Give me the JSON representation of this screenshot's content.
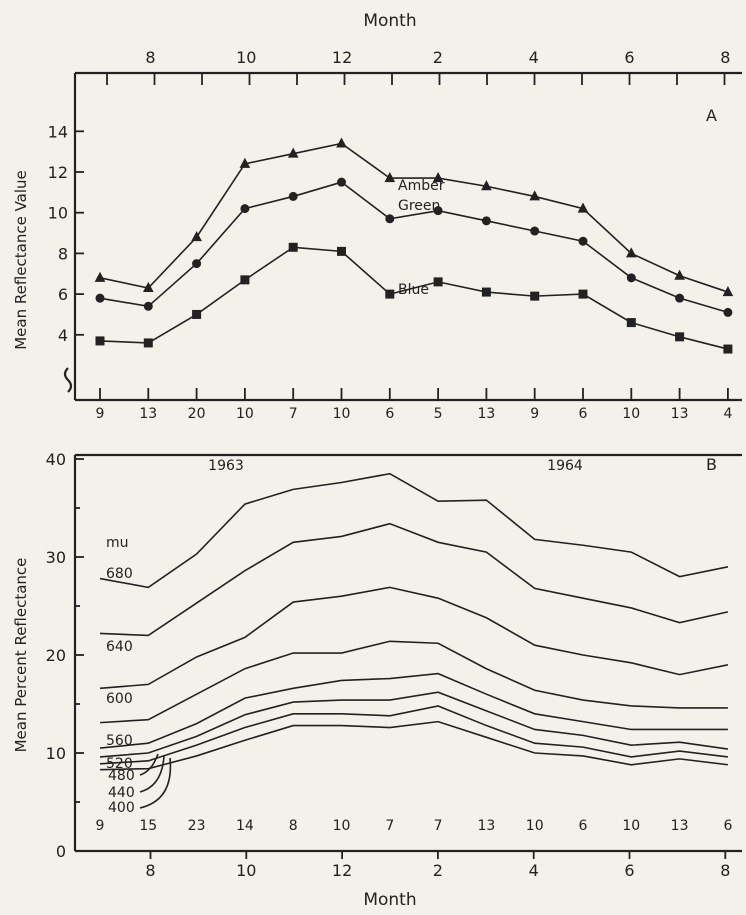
{
  "chart_data": [
    {
      "type": "line",
      "panel_label": "A",
      "title": "",
      "xlabel_top": "Month",
      "ylabel": "Mean Reflectance Value",
      "month_ticks": [
        "8",
        "10",
        "12",
        "2",
        "4",
        "6",
        "8"
      ],
      "day_ticks": [
        "9",
        "13",
        "20",
        "10",
        "7",
        "10",
        "6",
        "5",
        "13",
        "9",
        "6",
        "10",
        "13",
        "4"
      ],
      "yticks": [
        "4",
        "6",
        "8",
        "10",
        "12",
        "14"
      ],
      "ylim": [
        3,
        15.5
      ],
      "grid": false,
      "series": [
        {
          "name": "Amber",
          "marker": "triangle",
          "values": [
            6.8,
            6.3,
            8.8,
            12.4,
            12.9,
            13.4,
            11.7,
            11.7,
            11.3,
            10.8,
            10.2,
            8.0,
            6.9,
            6.1
          ]
        },
        {
          "name": "Green",
          "marker": "circle",
          "values": [
            5.8,
            5.4,
            7.5,
            10.2,
            10.8,
            11.5,
            9.7,
            10.1,
            9.6,
            9.1,
            8.6,
            6.8,
            5.8,
            5.1
          ]
        },
        {
          "name": "Blue",
          "marker": "square",
          "values": [
            3.7,
            3.6,
            5.0,
            6.7,
            8.3,
            8.1,
            6.0,
            6.6,
            6.1,
            5.9,
            6.0,
            4.6,
            3.9,
            3.3
          ]
        }
      ]
    },
    {
      "type": "line",
      "panel_label": "B",
      "title": "",
      "xlabel": "Month",
      "ylabel": "Mean Percent Reflectance",
      "year_labels": [
        "1963",
        "1964"
      ],
      "unit_label": "mu",
      "month_ticks": [
        "8",
        "10",
        "12",
        "2",
        "4",
        "6",
        "8"
      ],
      "day_ticks": [
        "9",
        "15",
        "23",
        "14",
        "8",
        "10",
        "7",
        "7",
        "13",
        "10",
        "6",
        "10",
        "13",
        "6"
      ],
      "yticks": [
        "0",
        "10",
        "20",
        "30",
        "40"
      ],
      "ylim": [
        0,
        40
      ],
      "grid": false,
      "series": [
        {
          "name": "680",
          "values": [
            27.8,
            26.9,
            30.3,
            35.4,
            36.9,
            37.6,
            38.5,
            35.7,
            35.8,
            31.8,
            31.2,
            30.5,
            28.0,
            29.0
          ]
        },
        {
          "name": "640",
          "values": [
            22.2,
            22.0,
            25.3,
            28.6,
            31.5,
            32.1,
            33.4,
            31.5,
            30.5,
            26.8,
            25.8,
            24.8,
            23.3,
            24.4
          ]
        },
        {
          "name": "600",
          "values": [
            16.6,
            17.0,
            19.8,
            21.8,
            25.4,
            26.0,
            26.9,
            25.8,
            23.8,
            21.0,
            20.0,
            19.2,
            18.0,
            19.0
          ]
        },
        {
          "name": "560",
          "values": [
            13.1,
            13.4,
            16.0,
            18.6,
            20.2,
            20.2,
            21.4,
            21.2,
            18.6,
            16.4,
            15.4,
            14.8,
            14.6,
            14.6
          ]
        },
        {
          "name": "520",
          "values": [
            10.5,
            11.0,
            13.0,
            15.6,
            16.6,
            17.4,
            17.6,
            18.1,
            16.0,
            14.0,
            13.2,
            12.4,
            12.4,
            12.4
          ]
        },
        {
          "name": "480",
          "values": [
            9.6,
            10.0,
            11.7,
            13.9,
            15.2,
            15.4,
            15.4,
            16.2,
            14.3,
            12.4,
            11.8,
            10.8,
            11.1,
            10.4
          ]
        },
        {
          "name": "440",
          "values": [
            8.9,
            9.2,
            10.8,
            12.6,
            14.0,
            14.0,
            13.8,
            14.8,
            12.8,
            11.0,
            10.6,
            9.6,
            10.2,
            9.6
          ]
        },
        {
          "name": "400",
          "values": [
            8.3,
            8.4,
            9.7,
            11.3,
            12.8,
            12.8,
            12.6,
            13.2,
            11.6,
            10.0,
            9.7,
            8.8,
            9.4,
            8.8
          ]
        }
      ]
    }
  ]
}
